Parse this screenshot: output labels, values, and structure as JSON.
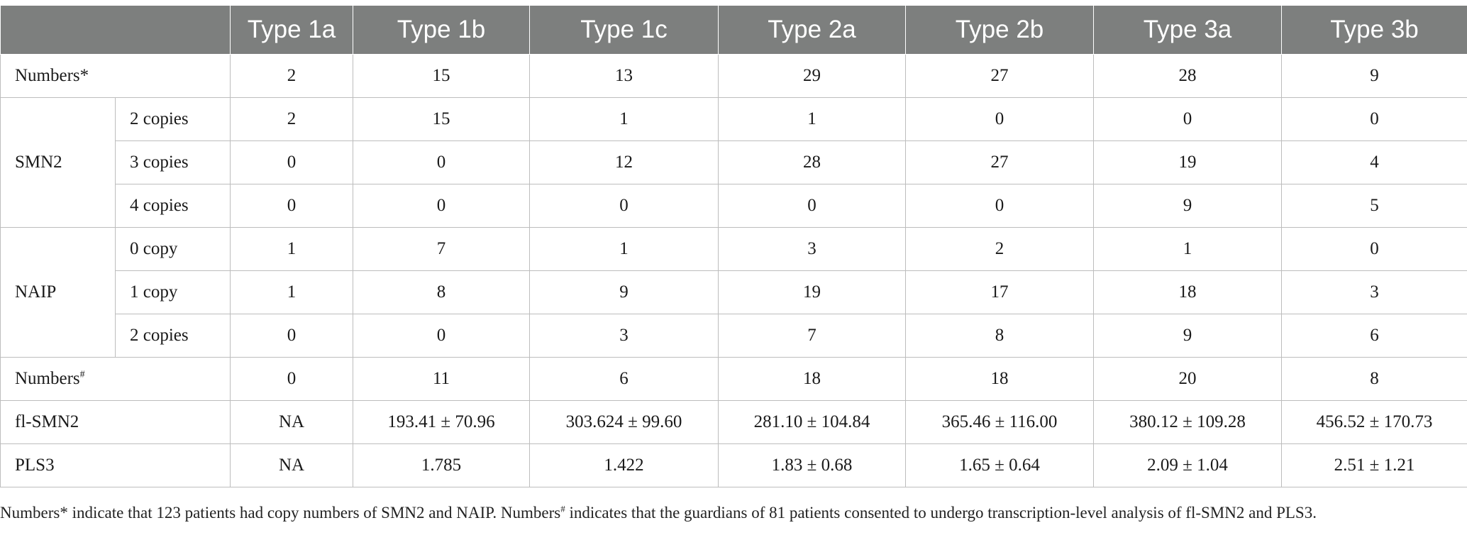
{
  "columns": [
    "Type 1a",
    "Type 1b",
    "Type 1c",
    "Type 2a",
    "Type 2b",
    "Type 3a",
    "Type 3b"
  ],
  "rows": {
    "numbers_star": {
      "label": "Numbers*",
      "values": [
        "2",
        "15",
        "13",
        "29",
        "27",
        "28",
        "9"
      ]
    },
    "smn2": {
      "label": "SMN2",
      "sub": [
        {
          "label": "2 copies",
          "values": [
            "2",
            "15",
            "1",
            "1",
            "0",
            "0",
            "0"
          ]
        },
        {
          "label": "3 copies",
          "values": [
            "0",
            "0",
            "12",
            "28",
            "27",
            "19",
            "4"
          ]
        },
        {
          "label": "4 copies",
          "values": [
            "0",
            "0",
            "0",
            "0",
            "0",
            "9",
            "5"
          ]
        }
      ]
    },
    "naip": {
      "label": "NAIP",
      "sub": [
        {
          "label": "0 copy",
          "values": [
            "1",
            "7",
            "1",
            "3",
            "2",
            "1",
            "0"
          ]
        },
        {
          "label": "1 copy",
          "values": [
            "1",
            "8",
            "9",
            "19",
            "17",
            "18",
            "3"
          ]
        },
        {
          "label": "2 copies",
          "values": [
            "0",
            "0",
            "3",
            "7",
            "8",
            "9",
            "6"
          ]
        }
      ]
    },
    "numbers_hash": {
      "label": "Numbers",
      "mark": "#",
      "values": [
        "0",
        "11",
        "6",
        "18",
        "18",
        "20",
        "8"
      ]
    },
    "fl_smn2": {
      "label": "fl-SMN2",
      "values": [
        "NA",
        "193.41 ± 70.96",
        "303.624 ± 99.60",
        "281.10 ± 104.84",
        "365.46 ± 116.00",
        "380.12 ± 109.28",
        "456.52 ± 170.73"
      ]
    },
    "pls3": {
      "label": "PLS3",
      "values": [
        "NA",
        "1.785",
        "1.422",
        "1.83 ± 0.68",
        "1.65 ± 0.64",
        "2.09 ± 1.04",
        "2.51 ± 1.21"
      ]
    }
  },
  "footnote": {
    "part1": "Numbers* indicate that 123 patients had copy numbers of SMN2 and NAIP. Numbers",
    "mark": "#",
    "part2": " indicates that the guardians of 81 patients consented to undergo transcription-level analysis of fl-SMN2 and PLS3."
  },
  "colors": {
    "header_bg": "#7d7f7e",
    "header_text": "#ffffff",
    "border": "#bdbdbd"
  }
}
